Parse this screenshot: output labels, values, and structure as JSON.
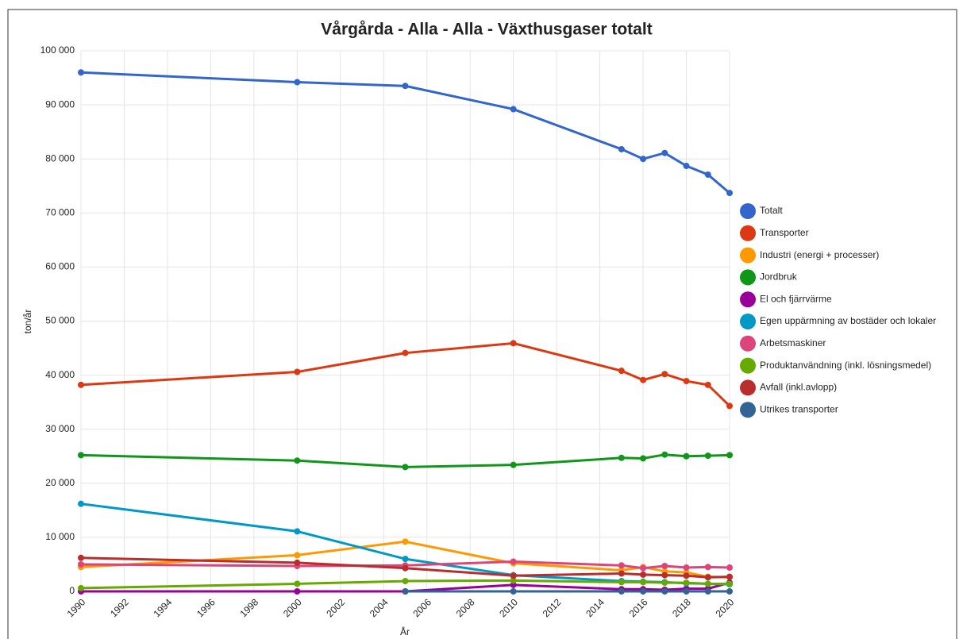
{
  "chart_data": {
    "type": "line",
    "title": "Vårgårda - Alla - Alla - Växthusgaser totalt",
    "x_label": "År",
    "y_label": "ton/år",
    "x": [
      1990,
      2000,
      2005,
      2010,
      2015,
      2016,
      2017,
      2018,
      2019,
      2020
    ],
    "xlim": [
      1990,
      2020
    ],
    "xticks": [
      1990,
      1992,
      1994,
      1996,
      1998,
      2000,
      2002,
      2004,
      2006,
      2008,
      2010,
      2012,
      2014,
      2016,
      2018,
      2020
    ],
    "ylim": [
      0,
      100000
    ],
    "yticks": [
      0,
      {
        "value": 10000,
        "label": "10 000"
      },
      {
        "value": 20000,
        "label": "20 000"
      },
      {
        "value": 30000,
        "label": "30 000"
      },
      {
        "value": 40000,
        "label": "40 000"
      },
      {
        "value": 50000,
        "label": "50 000"
      },
      {
        "value": 60000,
        "label": "60 000"
      },
      {
        "value": 70000,
        "label": "70 000"
      },
      {
        "value": 80000,
        "label": "80 000"
      },
      {
        "value": 90000,
        "label": "90 000"
      },
      {
        "value": 100000,
        "label": "100 000"
      }
    ],
    "grid": true,
    "legend": "right",
    "series": [
      {
        "name": "Totalt",
        "color": "#3366cc",
        "values": [
          96000,
          94200,
          93500,
          89200,
          81800,
          80000,
          81100,
          78700,
          77100,
          73700
        ]
      },
      {
        "name": "Transporter",
        "color": "#dc3912",
        "values": [
          38200,
          40600,
          44100,
          45900,
          40800,
          39100,
          40200,
          38900,
          38200,
          34300
        ]
      },
      {
        "name": "Industri (energi + processer)",
        "color": "#ff9900",
        "values": [
          4500,
          6700,
          9200,
          5200,
          3900,
          4500,
          3700,
          3500,
          2700,
          2600
        ]
      },
      {
        "name": "Jordbruk",
        "color": "#109618",
        "values": [
          25200,
          24200,
          23000,
          23400,
          24700,
          24600,
          25300,
          25000,
          25100,
          25200
        ]
      },
      {
        "name": "El och fjärrvärme",
        "color": "#990099",
        "values": [
          0,
          0,
          0,
          1200,
          400,
          400,
          300,
          500,
          500,
          1600
        ]
      },
      {
        "name": "Egen uppärmning av bostäder och lokaler",
        "color": "#0099c6",
        "values": [
          16200,
          11100,
          6000,
          3000,
          1900,
          1800,
          1700,
          1500,
          1400,
          1300
        ]
      },
      {
        "name": "Arbetsmaskiner",
        "color": "#dd4477",
        "values": [
          5000,
          4700,
          4800,
          5500,
          4800,
          4300,
          4700,
          4400,
          4500,
          4400
        ]
      },
      {
        "name": "Produktanvändning (inkl. lösningsmedel)",
        "color": "#66aa00",
        "values": [
          600,
          1400,
          1900,
          2000,
          1700,
          1700,
          1600,
          1600,
          1400,
          1400
        ]
      },
      {
        "name": "Avfall (inkl.avlopp)",
        "color": "#b82e2e",
        "values": [
          6200,
          5300,
          4300,
          2900,
          3300,
          3100,
          3000,
          2900,
          2600,
          2700
        ]
      },
      {
        "name": "Utrikes transporter",
        "color": "#316395",
        "values": [
          null,
          null,
          0,
          0,
          0,
          0,
          0,
          0,
          0,
          0
        ]
      }
    ]
  }
}
